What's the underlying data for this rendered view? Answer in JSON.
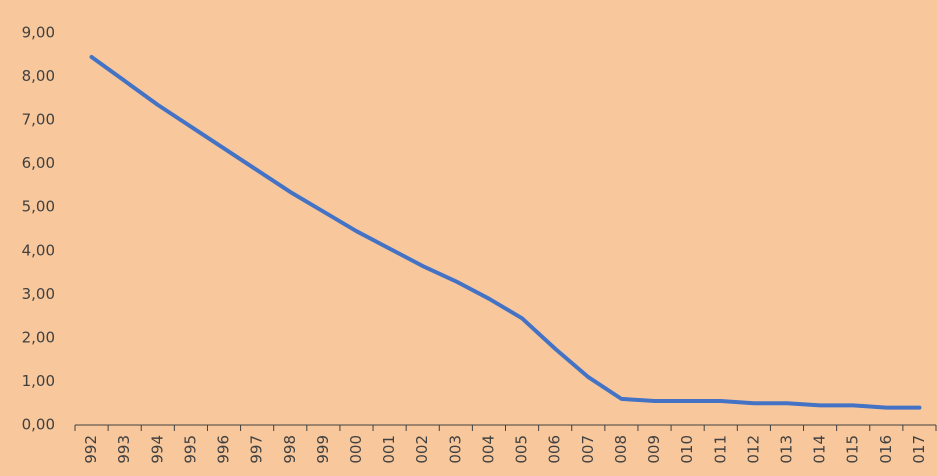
{
  "chart_data": {
    "type": "line",
    "categories": [
      "992",
      "993",
      "994",
      "995",
      "996",
      "997",
      "998",
      "999",
      "000",
      "001",
      "002",
      "003",
      "004",
      "005",
      "006",
      "007",
      "008",
      "009",
      "010",
      "011",
      "012",
      "013",
      "014",
      "015",
      "016",
      "017"
    ],
    "series": [
      {
        "color": "#4472c4",
        "values": [
          8.45,
          7.9,
          7.35,
          6.85,
          6.35,
          5.85,
          5.35,
          4.9,
          4.45,
          4.05,
          3.65,
          3.3,
          2.9,
          2.45,
          1.75,
          1.1,
          0.6,
          0.55,
          0.55,
          0.55,
          0.5,
          0.5,
          0.45,
          0.45,
          0.4,
          0.4
        ]
      }
    ],
    "ylim": [
      0,
      9
    ],
    "yticks": [
      {
        "value": 0,
        "label": "0,00"
      },
      {
        "value": 1,
        "label": "1,00"
      },
      {
        "value": 2,
        "label": "2,00"
      },
      {
        "value": 3,
        "label": "3,00"
      },
      {
        "value": 4,
        "label": "4,00"
      },
      {
        "value": 5,
        "label": "5,00"
      },
      {
        "value": 6,
        "label": "6,00"
      },
      {
        "value": 7,
        "label": "7,00"
      },
      {
        "value": 8,
        "label": "8,00"
      },
      {
        "value": 9,
        "label": "9,00"
      }
    ],
    "grid": false
  }
}
